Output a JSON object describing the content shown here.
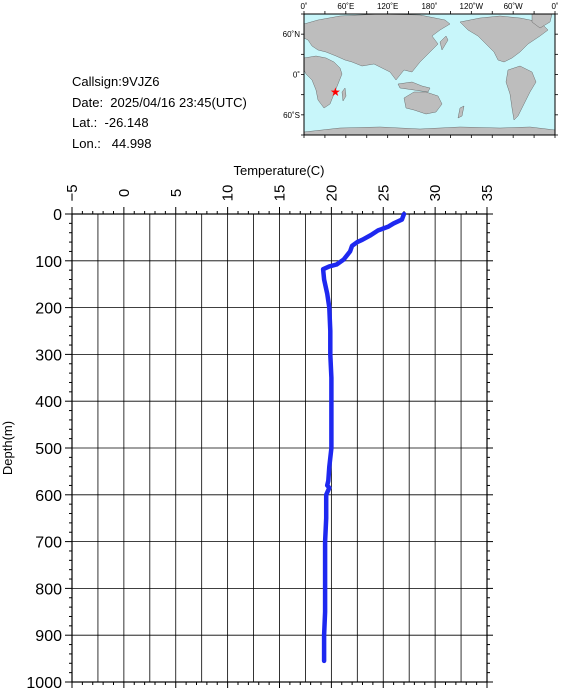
{
  "info": {
    "callsign": "Callsign:9VJZ6",
    "date": "Date:  2025/04/16 23:45(UTC)",
    "lat": "Lat.:  -26.148",
    "lon": "Lon.:   44.998"
  },
  "map": {
    "lon_labels": [
      "0˚",
      "60˚E",
      "120˚E",
      "180˚",
      "120˚W",
      "60˚W",
      "0˚"
    ],
    "lat_labels": [
      "60˚N",
      "0˚",
      "60˚S"
    ],
    "marker": {
      "lon": 44.998,
      "lat": -26.148
    },
    "colors": {
      "ocean": "#c8f6fa",
      "land": "#bdbdbd",
      "marker": "#ff0000"
    }
  },
  "chart_data": {
    "type": "line",
    "xlabel": "Temperature(C)",
    "ylabel": "Depth(m)",
    "xlim": [
      -5,
      35
    ],
    "ylim": [
      0,
      1000
    ],
    "y_inverted": true,
    "x_axis_position": "top",
    "xticks": [
      -5,
      0,
      5,
      10,
      15,
      20,
      25,
      30,
      35
    ],
    "yticks": [
      0,
      100,
      200,
      300,
      400,
      500,
      600,
      700,
      800,
      900,
      1000
    ],
    "grid": true,
    "series": [
      {
        "color": "#1e28f0",
        "x": [
          27.0,
          26.8,
          26.0,
          25.5,
          24.5,
          23.8,
          23.0,
          22.5,
          22.0,
          21.8,
          21.2,
          20.5,
          19.8,
          19.2,
          19.3,
          19.6,
          19.8,
          19.9,
          19.9,
          20.0,
          20.0,
          20.0,
          20.0,
          19.8,
          19.7,
          19.6,
          19.8,
          19.5,
          19.5,
          19.4,
          19.4,
          19.4,
          19.3,
          19.3
        ],
        "y": [
          0,
          12,
          20,
          27,
          35,
          45,
          55,
          60,
          68,
          80,
          97,
          108,
          112,
          118,
          140,
          170,
          200,
          250,
          300,
          350,
          400,
          450,
          500,
          540,
          570,
          580,
          585,
          600,
          650,
          700,
          800,
          850,
          900,
          955
        ]
      }
    ]
  }
}
